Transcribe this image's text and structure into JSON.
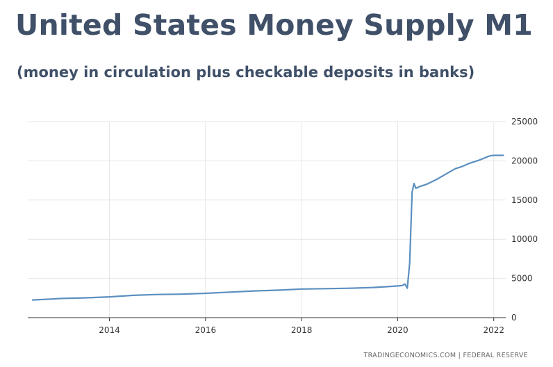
{
  "title": "United States Money Supply M1",
  "subtitle": "(money in circulation plus checkable deposits in banks)",
  "source": "TRADINGECONOMICS.COM  |  FEDERAL RESERVE",
  "colors": {
    "title": "#3f5068",
    "line": "#5b8fc0",
    "grid": "#e6e6e6"
  },
  "chart_data": {
    "type": "line",
    "title": "United States Money Supply M1",
    "xlabel": "",
    "ylabel": "",
    "xlim": [
      2012.3,
      2022.25
    ],
    "ylim": [
      0,
      25000
    ],
    "grid": true,
    "y_axis_side": "right",
    "x_ticks": [
      2014,
      2016,
      2018,
      2020,
      2022
    ],
    "x_tick_labels": [
      "2014",
      "2016",
      "2018",
      "2020",
      "2022"
    ],
    "y_ticks": [
      0,
      5000,
      10000,
      15000,
      20000,
      25000
    ],
    "y_tick_labels": [
      "0",
      "5000",
      "10000",
      "15000",
      "20000",
      "25000"
    ],
    "series": [
      {
        "x": [
          2012.4,
          2012.8,
          2013.0,
          2013.5,
          2014.0,
          2014.5,
          2015.0,
          2015.5,
          2016.0,
          2016.5,
          2017.0,
          2017.5,
          2018.0,
          2018.5,
          2019.0,
          2019.5,
          2019.9,
          2020.1,
          2020.15,
          2020.2,
          2020.25,
          2020.3,
          2020.34,
          2020.38,
          2020.45,
          2020.6,
          2020.8,
          2021.0,
          2021.2,
          2021.35,
          2021.5,
          2021.7,
          2021.9,
          2022.0,
          2022.2
        ],
        "y": [
          2250,
          2380,
          2450,
          2530,
          2650,
          2850,
          2950,
          3000,
          3100,
          3250,
          3400,
          3500,
          3650,
          3700,
          3750,
          3850,
          4000,
          4100,
          4300,
          3750,
          7000,
          16000,
          17100,
          16500,
          16700,
          17000,
          17600,
          18300,
          19000,
          19300,
          19700,
          20100,
          20600,
          20700,
          20700
        ]
      }
    ]
  }
}
